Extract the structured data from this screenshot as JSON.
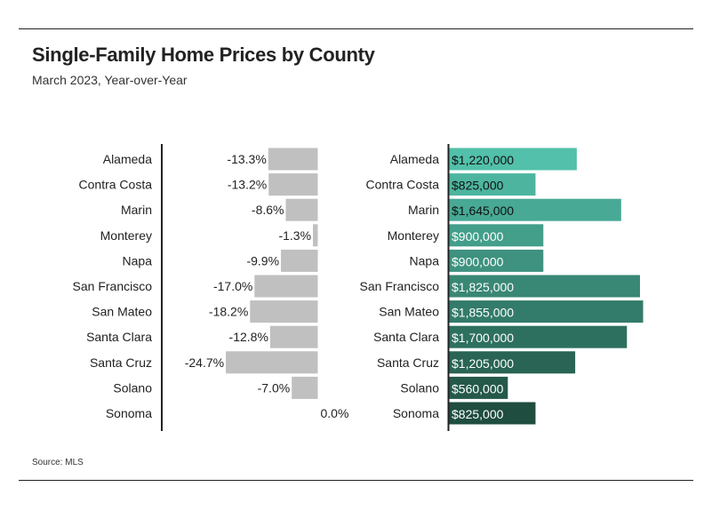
{
  "header": {
    "title": "Single-Family Home Prices by County",
    "subtitle": "March 2023, Year-over-Year"
  },
  "footer": {
    "source": "Source: MLS"
  },
  "colors": {
    "change_bar": "#c0c0c0",
    "price_gradient_start": "#52c0aa",
    "price_gradient_end": "#1f4d3f",
    "axis": "#222222",
    "text": "#222222"
  },
  "chart_data": [
    {
      "type": "bar",
      "orientation": "horizontal",
      "title": "",
      "categories": [
        "Alameda",
        "Contra Costa",
        "Marin",
        "Monterey",
        "Napa",
        "San Francisco",
        "San Mateo",
        "Santa Clara",
        "Santa Cruz",
        "Solano",
        "Sonoma"
      ],
      "values": [
        -13.3,
        -13.2,
        -8.6,
        -1.3,
        -9.9,
        -17.0,
        -18.2,
        -12.8,
        -24.7,
        -7.0,
        0.0
      ],
      "value_labels": [
        "-13.3%",
        "-13.2%",
        "-8.6%",
        "-1.3%",
        "-9.9%",
        "-17.0%",
        "-18.2%",
        "-12.8%",
        "-24.7%",
        "-7.0%",
        "0.0%"
      ],
      "unit": "%",
      "xlim": [
        -40,
        0
      ],
      "grid": false
    },
    {
      "type": "bar",
      "orientation": "horizontal",
      "title": "",
      "categories": [
        "Alameda",
        "Contra Costa",
        "Marin",
        "Monterey",
        "Napa",
        "San Francisco",
        "San Mateo",
        "Santa Clara",
        "Santa Cruz",
        "Solano",
        "Sonoma"
      ],
      "values": [
        1220000,
        825000,
        1645000,
        900000,
        900000,
        1825000,
        1855000,
        1700000,
        1205000,
        560000,
        825000
      ],
      "value_labels": [
        "$1,220,000",
        "$825,000",
        "$1,645,000",
        "$900,000",
        "$900,000",
        "$1,825,000",
        "$1,855,000",
        "$1,700,000",
        "$1,205,000",
        "$560,000",
        "$825,000"
      ],
      "unit": "$",
      "xlim": [
        0,
        1855000
      ],
      "grid": false
    }
  ]
}
